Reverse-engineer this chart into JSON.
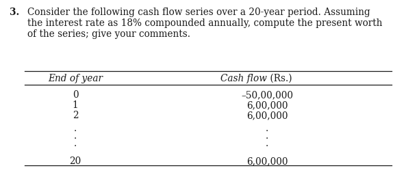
{
  "question_number": "3.",
  "question_text_line1": "Consider the following cash flow series over a 20-year period. Assuming",
  "question_text_line2": "the interest rate as 18% compounded annually, compute the present worth",
  "question_text_line3": "of the series; give your comments.",
  "col1_header": "End of year",
  "col2_header_italic": "Cash flow",
  "col2_header_normal": " (Rs.)",
  "col1_values": [
    "0",
    "1",
    "2",
    ".",
    ".",
    ".",
    "20"
  ],
  "col2_values": [
    "–50,00,000",
    "6,00,000",
    "6,00,000",
    ".",
    ".",
    ".",
    "6,00,000"
  ],
  "bg_color": "#ffffff",
  "text_color": "#1a1a1a",
  "font_size_q": 9.8,
  "font_size_table": 9.8,
  "table_line_color": "#1a1a1a"
}
